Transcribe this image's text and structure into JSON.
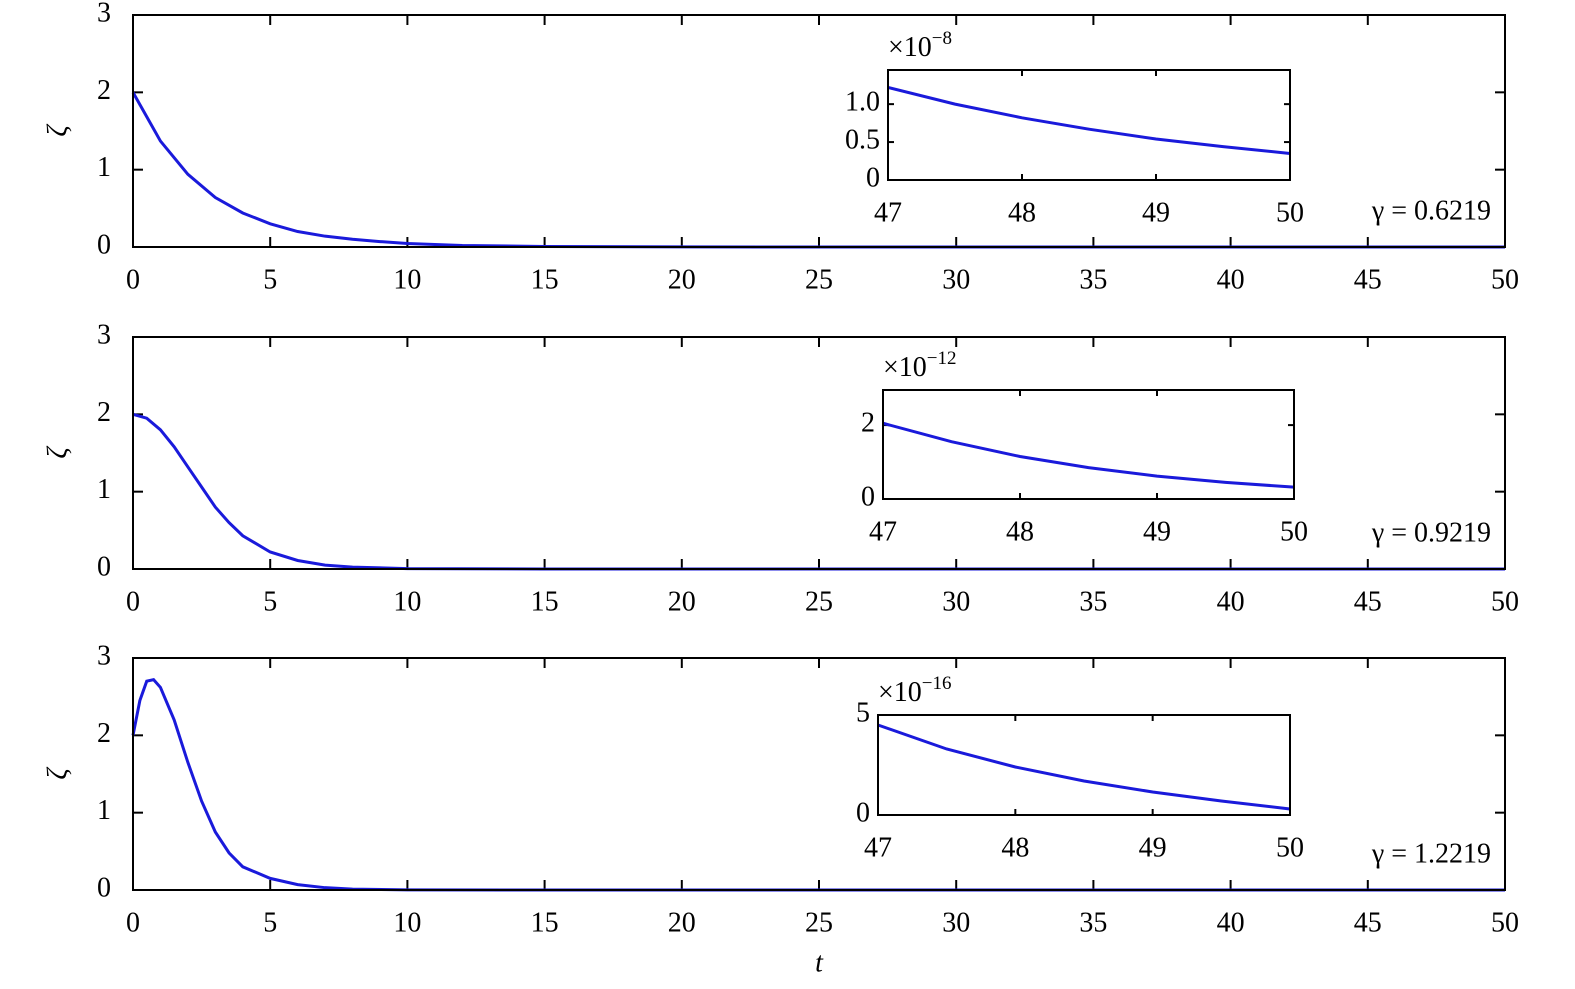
{
  "chart_data": [
    {
      "type": "line",
      "y_label": "ζ",
      "annotation": "γ = 0.6219",
      "xlim": [
        0,
        50
      ],
      "ylim": [
        0,
        3
      ],
      "xticks": [
        0,
        5,
        10,
        15,
        20,
        25,
        30,
        35,
        40,
        45,
        50
      ],
      "yticks": [
        0,
        1,
        2,
        3
      ],
      "x": [
        0,
        1,
        2,
        3,
        4,
        5,
        6,
        7,
        8,
        9,
        10,
        12,
        15,
        20,
        30,
        40,
        50
      ],
      "series": [
        {
          "color": "#1a1adb",
          "values": [
            2,
            1.37,
            0.94,
            0.64,
            0.44,
            0.3,
            0.2,
            0.14,
            0.1,
            0.07,
            0.045,
            0.02,
            0.007,
            0.001,
            0,
            0,
            0
          ]
        }
      ]
    },
    {
      "type": "line",
      "yscale_base": "×10",
      "yscale_exponent": "−8",
      "xlim": [
        47,
        50
      ],
      "ylim": [
        0,
        1.45
      ],
      "xticks": [
        47,
        48,
        49,
        50
      ],
      "yticks": [
        0,
        0.5,
        {
          "value": 1,
          "label": "1.0"
        }
      ],
      "x": [
        47,
        47.5,
        48,
        48.5,
        49,
        49.5,
        50
      ],
      "series": [
        {
          "color": "#1a1adb",
          "values": [
            1.22,
            1.0,
            0.82,
            0.67,
            0.54,
            0.44,
            0.35
          ]
        }
      ]
    },
    {
      "type": "line",
      "y_label": "ζ",
      "annotation": "γ = 0.9219",
      "xlim": [
        0,
        50
      ],
      "ylim": [
        0,
        3
      ],
      "xticks": [
        0,
        5,
        10,
        15,
        20,
        25,
        30,
        35,
        40,
        45,
        50
      ],
      "yticks": [
        0,
        1,
        2,
        3
      ],
      "x": [
        0,
        0.5,
        1,
        1.5,
        2,
        2.5,
        3,
        3.5,
        4,
        5,
        6,
        7,
        8,
        10,
        15,
        30,
        50
      ],
      "series": [
        {
          "color": "#1a1adb",
          "values": [
            2,
            1.95,
            1.8,
            1.58,
            1.32,
            1.06,
            0.8,
            0.6,
            0.43,
            0.22,
            0.11,
            0.05,
            0.025,
            0.005,
            0,
            0,
            0
          ]
        }
      ]
    },
    {
      "type": "line",
      "yscale_base": "×10",
      "yscale_exponent": "−12",
      "xlim": [
        47,
        50
      ],
      "ylim": [
        0,
        2.95
      ],
      "xticks": [
        47,
        48,
        49,
        50
      ],
      "yticks": [
        0,
        2
      ],
      "x": [
        47,
        47.5,
        48,
        48.5,
        49,
        49.5,
        50
      ],
      "series": [
        {
          "color": "#1a1adb",
          "values": [
            2.05,
            1.55,
            1.15,
            0.85,
            0.62,
            0.45,
            0.32
          ]
        }
      ]
    },
    {
      "type": "line",
      "y_label": "ζ",
      "x_label": "t",
      "annotation": "γ = 1.2219",
      "xlim": [
        0,
        50
      ],
      "ylim": [
        0,
        3
      ],
      "xticks": [
        0,
        5,
        10,
        15,
        20,
        25,
        30,
        35,
        40,
        45,
        50
      ],
      "yticks": [
        0,
        1,
        2,
        3
      ],
      "x": [
        0,
        0.25,
        0.5,
        0.75,
        1,
        1.5,
        2,
        2.5,
        3,
        3.5,
        4,
        5,
        6,
        7,
        8,
        10,
        15,
        30,
        50
      ],
      "series": [
        {
          "color": "#1a1adb",
          "values": [
            2,
            2.45,
            2.7,
            2.72,
            2.62,
            2.2,
            1.65,
            1.15,
            0.75,
            0.48,
            0.3,
            0.15,
            0.07,
            0.03,
            0.012,
            0.002,
            0,
            0,
            0
          ]
        }
      ]
    },
    {
      "type": "line",
      "yscale_base": "×10",
      "yscale_exponent": "−16",
      "xlim": [
        47,
        50
      ],
      "ylim": [
        0,
        5
      ],
      "xticks": [
        47,
        48,
        49,
        50
      ],
      "yticks": [
        0,
        5
      ],
      "x": [
        47,
        47.5,
        48,
        48.5,
        49,
        49.5,
        50
      ],
      "series": [
        {
          "color": "#1a1adb",
          "values": [
            4.5,
            3.3,
            2.4,
            1.7,
            1.15,
            0.7,
            0.3
          ]
        }
      ]
    }
  ]
}
